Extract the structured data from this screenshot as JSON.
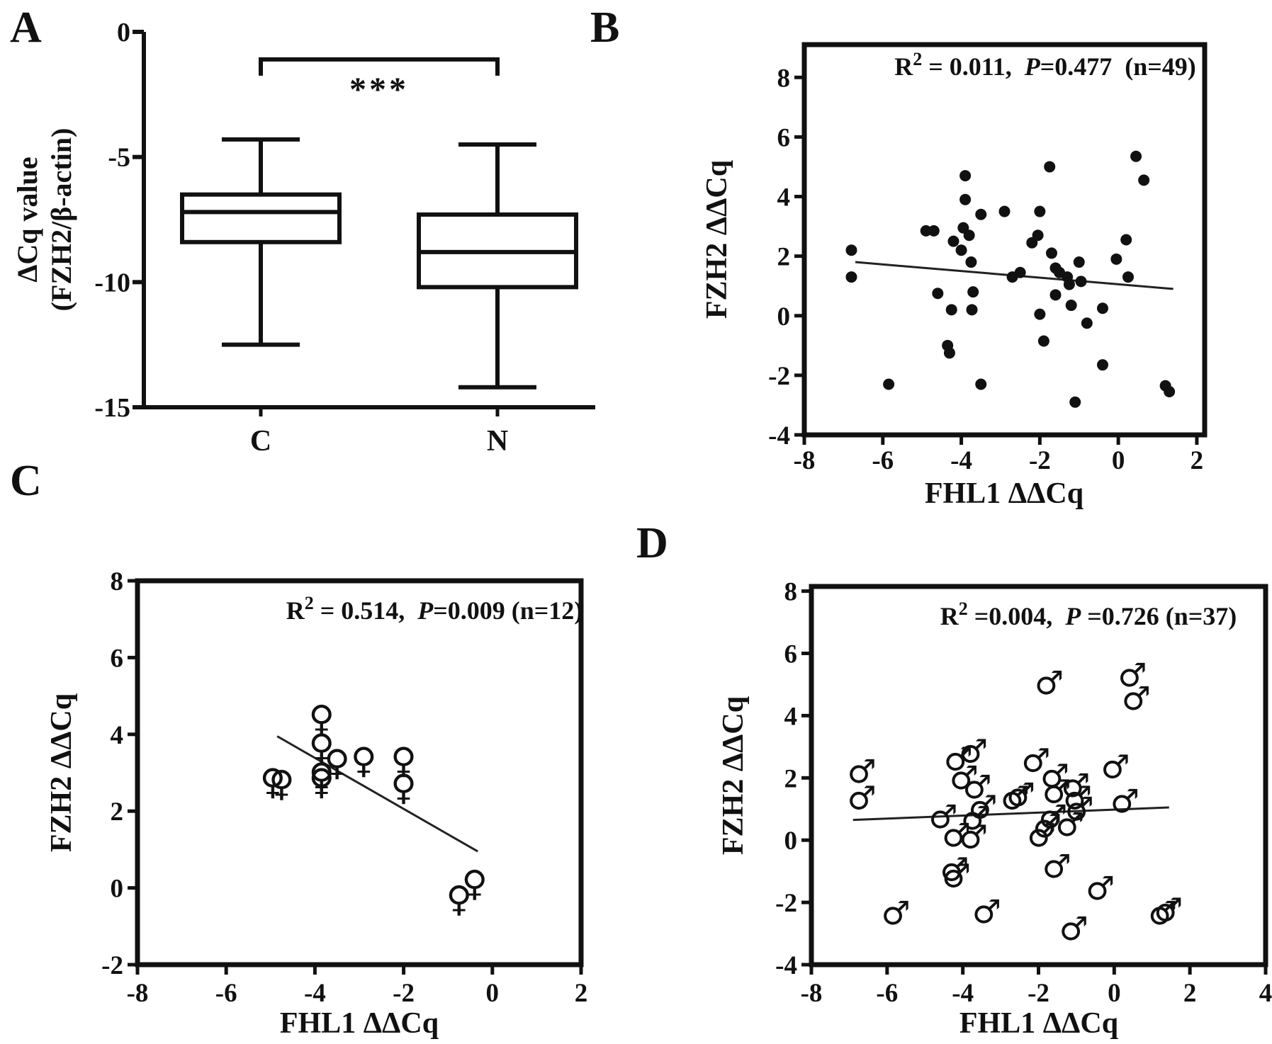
{
  "figure": {
    "background": "#ffffff",
    "ink": "#111111",
    "panel_letters": [
      "A",
      "B",
      "C",
      "D"
    ]
  },
  "chart_data": [
    {
      "id": "A",
      "type": "box",
      "panel_label": "A",
      "ylabel_lines": [
        "ΔCq value",
        "(FZH2/β-actin)"
      ],
      "categories": [
        "C",
        "N"
      ],
      "ylim": [
        -15,
        0
      ],
      "y_ticks": [
        0,
        -5,
        -10,
        -15
      ],
      "grid": false,
      "boxes": [
        {
          "category": "C",
          "whisker_low": -12.5,
          "q1": -8.4,
          "median": -7.2,
          "q3": -6.5,
          "whisker_high": -4.3
        },
        {
          "category": "N",
          "whisker_low": -14.2,
          "q1": -10.2,
          "median": -8.8,
          "q3": -7.3,
          "whisker_high": -4.5
        }
      ],
      "significance": {
        "label": "***",
        "between": [
          "C",
          "N"
        ],
        "bracket_y": -1.1,
        "hook_y": -1.75,
        "stars_y": -2.75
      }
    },
    {
      "id": "B",
      "type": "scatter",
      "panel_label": "B",
      "xlabel": "FHL1 ΔΔCq",
      "ylabel": "FZH2 ΔΔCq",
      "marker": {
        "name": "filled-circle-marker",
        "glyph": "●"
      },
      "stats_parts": [
        {
          "t": "R"
        },
        {
          "t": "2",
          "sup": true
        },
        {
          "t": " = 0.011,  "
        },
        {
          "t": "P",
          "italic": true
        },
        {
          "t": "=0.477  "
        },
        {
          "t": "(n=49)"
        }
      ],
      "xlim": [
        -8,
        2.2
      ],
      "ylim": [
        -4,
        9.1
      ],
      "x_ticks": [
        -8,
        -6,
        -4,
        -2,
        0,
        2
      ],
      "y_ticks": [
        8,
        6,
        4,
        2,
        0,
        -2,
        -4
      ],
      "grid": false,
      "legend": "none",
      "regression": {
        "x1": -6.7,
        "y1": 1.8,
        "x2": 1.4,
        "y2": 0.9
      },
      "points": [
        [
          -6.8,
          2.2
        ],
        [
          -6.8,
          1.3
        ],
        [
          -5.85,
          -2.3
        ],
        [
          -4.9,
          2.85
        ],
        [
          -4.7,
          2.85
        ],
        [
          -4.6,
          0.75
        ],
        [
          -4.2,
          2.5
        ],
        [
          -4.25,
          0.2
        ],
        [
          -4.35,
          -1.0
        ],
        [
          -4.3,
          -1.25
        ],
        [
          -3.9,
          4.7
        ],
        [
          -3.9,
          3.9
        ],
        [
          -3.95,
          2.95
        ],
        [
          -3.8,
          2.7
        ],
        [
          -4.0,
          2.2
        ],
        [
          -3.75,
          1.8
        ],
        [
          -3.7,
          0.8
        ],
        [
          -3.73,
          0.2
        ],
        [
          -3.5,
          3.4
        ],
        [
          -3.5,
          -2.3
        ],
        [
          -2.9,
          3.5
        ],
        [
          -2.7,
          1.3
        ],
        [
          -2.5,
          1.45
        ],
        [
          -2.2,
          2.45
        ],
        [
          -2.05,
          2.7
        ],
        [
          -2.0,
          3.5
        ],
        [
          -1.75,
          5.0
        ],
        [
          -2.0,
          0.05
        ],
        [
          -1.9,
          -0.85
        ],
        [
          -1.7,
          2.1
        ],
        [
          -1.6,
          1.6
        ],
        [
          -1.6,
          0.7
        ],
        [
          -1.5,
          1.45
        ],
        [
          -1.3,
          1.3
        ],
        [
          -1.25,
          1.05
        ],
        [
          -1.2,
          0.35
        ],
        [
          -1.1,
          -2.9
        ],
        [
          -1.0,
          1.8
        ],
        [
          -0.95,
          1.15
        ],
        [
          -0.8,
          -0.25
        ],
        [
          -0.4,
          -1.65
        ],
        [
          -0.4,
          0.25
        ],
        [
          -0.05,
          1.9
        ],
        [
          0.2,
          2.55
        ],
        [
          0.25,
          1.3
        ],
        [
          0.45,
          5.35
        ],
        [
          0.65,
          4.55
        ],
        [
          1.2,
          -2.35
        ],
        [
          1.3,
          -2.55
        ]
      ]
    },
    {
      "id": "C",
      "type": "scatter",
      "panel_label": "C",
      "xlabel": "FHL1 ΔΔCq",
      "ylabel": "FZH2 ΔΔCq",
      "marker": {
        "name": "female-sign-marker",
        "glyph": "♀"
      },
      "stats_parts": [
        {
          "t": "R"
        },
        {
          "t": "2",
          "sup": true
        },
        {
          "t": " = 0.514,  "
        },
        {
          "t": "P",
          "italic": true
        },
        {
          "t": "=0.009 "
        },
        {
          "t": "(n=12)"
        }
      ],
      "xlim": [
        -8,
        2
      ],
      "ylim": [
        -2,
        8
      ],
      "x_ticks": [
        -8,
        -6,
        -4,
        -2,
        0,
        2
      ],
      "y_ticks": [
        8,
        6,
        4,
        2,
        0,
        -2
      ],
      "grid": false,
      "legend": "none",
      "regression": {
        "x1": -4.85,
        "y1": 3.95,
        "x2": -0.33,
        "y2": 0.95
      },
      "points": [
        [
          -4.95,
          3.0
        ],
        [
          -4.75,
          2.95
        ],
        [
          -3.85,
          4.65
        ],
        [
          -3.85,
          3.9
        ],
        [
          -3.85,
          3.15
        ],
        [
          -3.85,
          3.0
        ],
        [
          -3.5,
          3.5
        ],
        [
          -2.9,
          3.55
        ],
        [
          -2.0,
          3.55
        ],
        [
          -2.0,
          2.85
        ],
        [
          -0.75,
          -0.05
        ],
        [
          -0.4,
          0.35
        ]
      ]
    },
    {
      "id": "D",
      "type": "scatter",
      "panel_label": "D",
      "xlabel": "FHL1 ΔΔCq",
      "ylabel": "FZH2 ΔΔCq",
      "marker": {
        "name": "male-sign-marker",
        "glyph": "♂"
      },
      "stats_parts": [
        {
          "t": "R"
        },
        {
          "t": "2",
          "sup": true
        },
        {
          "t": " =0.004,  "
        },
        {
          "t": "P",
          "italic": true
        },
        {
          "t": " =0.726 "
        },
        {
          "t": "(n=37)"
        }
      ],
      "xlim": [
        -8,
        4
      ],
      "ylim": [
        -4,
        8.15
      ],
      "x_ticks": [
        -8,
        -6,
        -4,
        -2,
        0,
        2,
        4
      ],
      "y_ticks": [
        8,
        6,
        4,
        2,
        0,
        -2,
        -4
      ],
      "grid": false,
      "legend": "none",
      "regression": {
        "x1": -6.9,
        "y1": 0.65,
        "x2": 1.45,
        "y2": 1.05
      },
      "points": [
        [
          -6.8,
          2.05
        ],
        [
          -6.8,
          1.2
        ],
        [
          -5.9,
          -2.5
        ],
        [
          -4.25,
          2.45
        ],
        [
          -3.85,
          2.7
        ],
        [
          -4.1,
          1.85
        ],
        [
          -3.75,
          1.55
        ],
        [
          -4.65,
          0.6
        ],
        [
          -4.3,
          0.0
        ],
        [
          -3.8,
          0.55
        ],
        [
          -3.85,
          -0.05
        ],
        [
          -4.35,
          -1.1
        ],
        [
          -4.3,
          -1.3
        ],
        [
          -3.5,
          -2.45
        ],
        [
          -3.6,
          0.9
        ],
        [
          -2.75,
          1.2
        ],
        [
          -2.6,
          1.3
        ],
        [
          -2.2,
          2.4
        ],
        [
          -2.05,
          0.0
        ],
        [
          -1.85,
          4.9
        ],
        [
          -1.7,
          1.9
        ],
        [
          -1.65,
          1.4
        ],
        [
          -1.75,
          0.6
        ],
        [
          -1.9,
          0.3
        ],
        [
          -1.65,
          -1.0
        ],
        [
          -1.15,
          1.6
        ],
        [
          -1.1,
          1.2
        ],
        [
          -1.05,
          0.85
        ],
        [
          -1.3,
          0.35
        ],
        [
          -1.2,
          -3.0
        ],
        [
          -0.1,
          2.2
        ],
        [
          0.15,
          1.1
        ],
        [
          -0.5,
          -1.7
        ],
        [
          0.35,
          5.15
        ],
        [
          0.45,
          4.4
        ],
        [
          1.15,
          -2.5
        ],
        [
          1.3,
          -2.4
        ]
      ]
    }
  ]
}
